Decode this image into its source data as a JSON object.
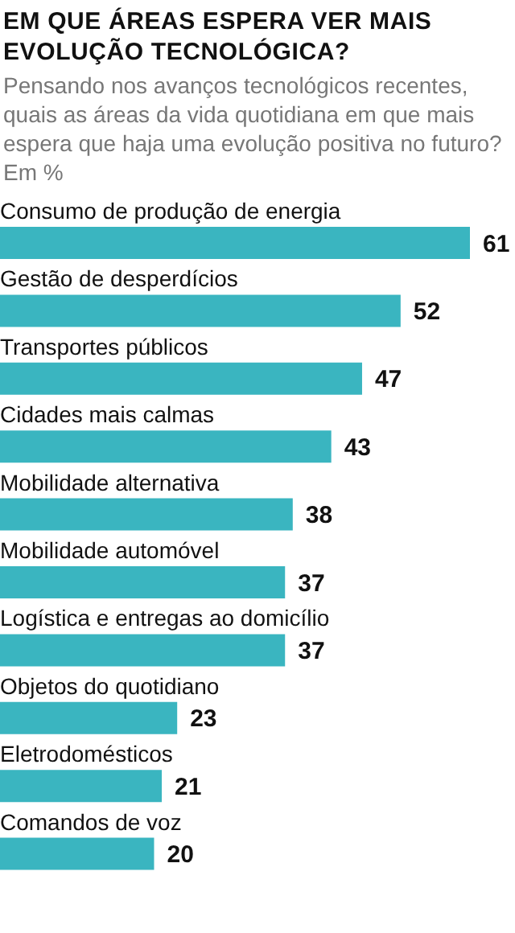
{
  "chart_data": {
    "type": "bar",
    "orientation": "horizontal",
    "title": "EM QUE ÁREAS ESPERA VER MAIS EVOLUÇÃO TECNOLÓGICA?",
    "subtitle": "Pensando nos avanços tecnológicos recentes, quais as áreas da vida quotidiana em que mais espera que haja uma evolução positiva no futuro? Em %",
    "categories": [
      "Consumo de produção de energia",
      "Gestão de desperdícios",
      "Transportes públicos",
      "Cidades mais calmas",
      "Mobilidade alternativa",
      "Mobilidade automóvel",
      "Logística e entregas ao domicílio",
      "Objetos do quotidiano",
      "Eletrodomésticos",
      "Comandos de voz"
    ],
    "values": [
      61,
      52,
      47,
      43,
      38,
      37,
      37,
      23,
      21,
      20
    ],
    "color": "#3ab5c0",
    "data_labels": true
  }
}
